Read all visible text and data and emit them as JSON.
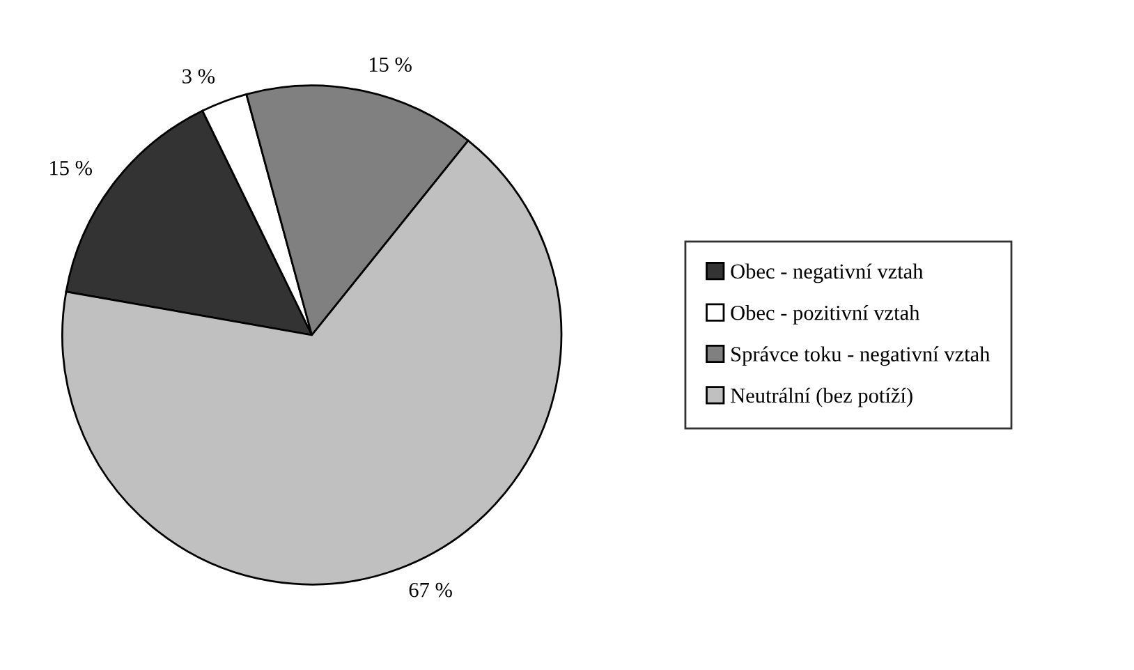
{
  "chart_data": {
    "type": "pie",
    "categories": [
      "Obec - negativní vztah",
      "Obec - pozitivní vztah",
      "Správce toku - negativní vztah",
      "Neutrální (bez potíží)"
    ],
    "values": [
      15,
      3,
      15,
      67
    ],
    "value_labels": [
      "15 %",
      "3 %",
      "15 %",
      "67 %"
    ],
    "colors": [
      "#333333",
      "#ffffff",
      "#808080",
      "#c0c0c0"
    ],
    "legend": "right"
  }
}
